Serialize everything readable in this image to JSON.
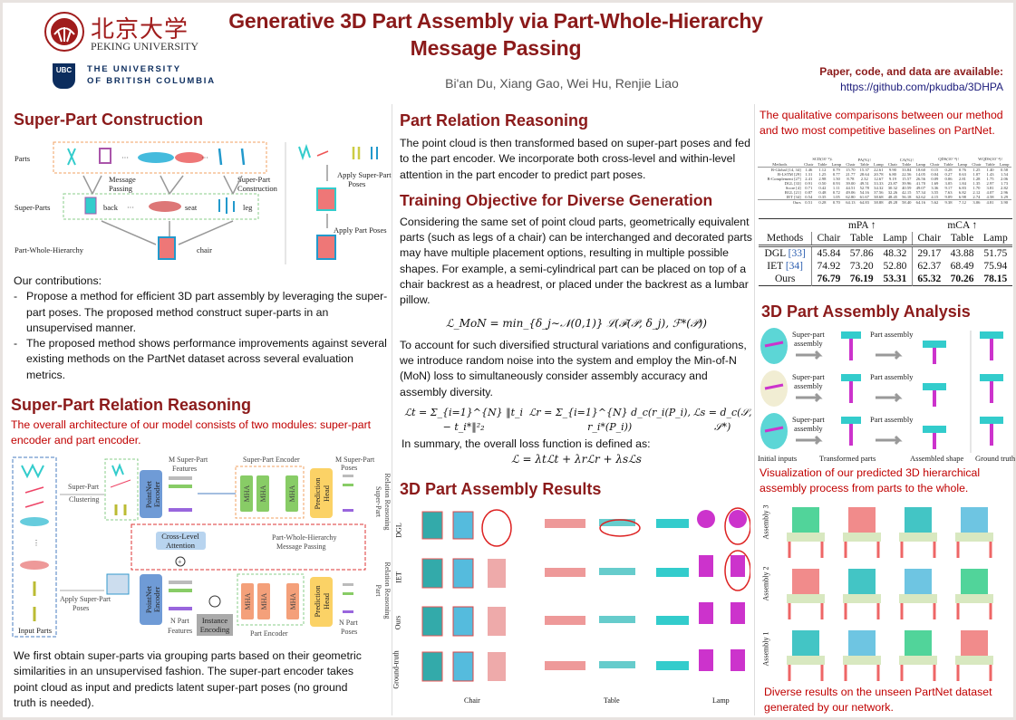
{
  "header": {
    "title_line1": "Generative 3D Part Assembly via Part-Whole-Hierarchy",
    "title_line2": "Message Passing",
    "authors": "Bi'an Du,  Xiang Gao, Wei Hu, Renjie Liao",
    "availability": "Paper, code, and data are available:",
    "link": "https://github.com/pkudba/3DHPA",
    "logos": {
      "pku_chinese": "北京大学",
      "pku_english": "PEKING UNIVERSITY",
      "ubc_mark": "UBC",
      "ubc_line1": "THE UNIVERSITY",
      "ubc_line2": "OF BRITISH COLUMBIA"
    }
  },
  "colors": {
    "heading": "#8b1a1a",
    "caption": "#c00000",
    "link": "#1a1a7a"
  },
  "left": {
    "construction": {
      "title": "Super-Part Construction",
      "figure": {
        "parts": "Parts",
        "super_parts": "Super-Parts",
        "hierarchy": "Part-Whole-Hierarchy",
        "message_passing": [
          "Message",
          "Passing"
        ],
        "construction": [
          "Super-Part",
          "Construction"
        ],
        "back": "back",
        "seat": "seat",
        "leg": "leg",
        "chair": "chair",
        "dots": "···",
        "apply_super": [
          "Apply Super-Part",
          "Poses"
        ],
        "apply_part": "Apply Part Poses"
      },
      "contributions_title": "Our contributions:",
      "contributions": [
        "Propose a method for efficient 3D part assembly by leveraging the super-part poses. The proposed method construct super-parts in an unsupervised manner.",
        "The proposed method shows performance improvements against several existing methods on the PartNet dataset across several evaluation metrics."
      ]
    },
    "relation": {
      "title": "Super-Part Relation Reasoning",
      "caption": "The overall architecture of our model consists of two modules: super-part encoder and part encoder.",
      "figure": {
        "input_parts": "Input Parts",
        "clustering": [
          "Super-Part",
          "Clustering"
        ],
        "apply_poses": [
          "Apply Super-Part",
          "Poses"
        ],
        "pointnet": [
          "PointNet",
          "Encoder"
        ],
        "m_features": [
          "M Super-Part",
          "Features"
        ],
        "n_features": [
          "N Part",
          "Features"
        ],
        "super_encoder": "Super-Part Encoder",
        "part_encoder": "Part Encoder",
        "mha": "MHA",
        "prediction": [
          "Prediction",
          "Head"
        ],
        "m_poses": [
          "M Super-Part",
          "Poses"
        ],
        "n_poses": [
          "N Part",
          "Poses"
        ],
        "cross_level": [
          "Cross-Level",
          "Attention"
        ],
        "message": [
          "Part-Whole-Hierarchy",
          "Message Passing"
        ],
        "instance": [
          "Instance",
          "Encoding"
        ],
        "super_reasoning": [
          "Super-Part",
          "Relation Reasoning"
        ],
        "part_reasoning": [
          "Part",
          "Relation Reasoning"
        ]
      },
      "body": "We first obtain super-parts via grouping parts based on their geometric similarities in an unsupervised fashion. The super-part encoder takes point cloud as input and predicts latent super-part poses (no ground truth is needed)."
    }
  },
  "middle": {
    "part_relation": {
      "title": "Part Relation Reasoning",
      "body": "The point cloud is then transformed based on super-part poses and fed to the part encoder. We incorporate both cross-level and within-level attention in the part encoder to predict part poses."
    },
    "training": {
      "title": "Training Objective for Diverse Generation",
      "body1": "Considering the same set of point cloud parts, geometrically equivalent parts (such as legs of a chair) can be interchanged and decorated parts may have multiple placement options, resulting in multiple possible shapes. For example, a semi-cylindrical part can be placed on top of a chair backrest as a headrest, or placed under the backrest as a lumbar pillow.",
      "eq_mon": "ℒ_MoN = min_{δ_j∼𝒩(0,1)} ℒ(ℱ(𝒫, δ_j), ℱ*(𝒫))",
      "body2": "To account for such diversified structural variations and configurations, we introduce random noise into the system and employ the Min-of-N (MoN) loss to simultaneously consider assembly accuracy and assembly diversity.",
      "eq_t": "ℒt = Σ_{i=1}^{N} ‖t_i − t_i*‖²₂",
      "eq_r": "ℒr = Σ_{i=1}^{N} d_c(r_i(P_i), r_i*(P_i))",
      "eq_s": "ℒs = d_c(𝒮, 𝒮*)",
      "body3": "In summary, the overall loss function is defined as:",
      "eq_total": "ℒ = λtℒt + λrℒr + λsℒs"
    },
    "results": {
      "title": "3D Part Assembly Results",
      "rows": [
        "DGL",
        "IET",
        "Ours",
        "Ground-truth"
      ],
      "columns": [
        "Chair",
        "Table",
        "Lamp"
      ]
    }
  },
  "right": {
    "caption_top": "The qualitative comparisons between our method and two most competitive baselines on PartNet.",
    "full_table": {
      "groups": [
        "SCD(10⁻³)↓",
        "PA(%)↑",
        "CA(%)↑",
        "QDS(10⁻⁴)↑",
        "WQDS(10⁻⁴)↑"
      ],
      "methods_header": "Methods",
      "sub": [
        "Chair",
        "Table",
        "Lamp"
      ],
      "rows": [
        {
          "method": "B-Global [14, 34]",
          "values": [
            "1.46",
            "1.12",
            "0.79",
            "15.70",
            "15.37",
            "22.61",
            "9.90",
            "33.84",
            "18.60",
            "0.15",
            "0.28",
            "0.76",
            "1.25",
            "1.40",
            "0.58"
          ]
        },
        {
          "method": "B-LSTM [29]",
          "values": [
            "1.31",
            "1.25",
            "0.77",
            "21.77",
            "28.64",
            "20.78",
            "6.80",
            "22.56",
            "14.05",
            "0.04",
            "0.27",
            "0.63",
            "1.07",
            "1.43",
            "1.54"
          ]
        },
        {
          "method": "B-Complement [27]",
          "values": [
            "2.41",
            "2.98",
            "1.50",
            "8.78",
            "2.32",
            "12.67",
            "9.19",
            "15.57",
            "26.56",
            "0.09",
            "0.06",
            "2.81",
            "1.28",
            "1.75",
            "2.06"
          ]
        },
        {
          "method": "DGL [33]",
          "values": [
            "0.91",
            "0.50",
            "0.93",
            "39.00",
            "49.51",
            "33.33",
            "23.87",
            "39.96",
            "41.70",
            "1.69",
            "3.05",
            "1.84",
            "1.35",
            "2.97",
            "1.73"
          ]
        },
        {
          "method": "Score [4]",
          "values": [
            "0.71",
            "0.42",
            "1.11",
            "44.51",
            "52.78",
            "34.32",
            "30.32",
            "40.59",
            "49.07",
            "3.36",
            "9.17",
            "6.83",
            "1.70",
            "3.81",
            "2.82"
          ]
        },
        {
          "method": "RGL [21]",
          "values": [
            "0.87",
            "0.48",
            "0.72",
            "49.06",
            "54.16",
            "37.56",
            "32.26",
            "42.15",
            "57.34",
            "3.55",
            "7.63",
            "6.82",
            "2.12",
            "4.07",
            "2.96"
          ]
        },
        {
          "method": "IET [34]",
          "values": [
            "0.54",
            "0.35",
            "1.05",
            "62.80",
            "61.67",
            "38.68",
            "48.45",
            "56.18",
            "62.62",
            "4.15",
            "9.09",
            "6.98",
            "2.74",
            "4.58",
            "3.29"
          ]
        },
        {
          "method": "Ours",
          "values": [
            "0.51",
            "0.28",
            "0.70",
            "64.13",
            "64.83",
            "38.88",
            "49.28",
            "58.40",
            "64.16",
            "5.62",
            "9.38",
            "7.12",
            "3.06",
            "4.81",
            "3.90"
          ]
        }
      ]
    },
    "table": {
      "groups": [
        "mPA ↑",
        "mCA ↑"
      ],
      "methods_header": "Methods",
      "sub": [
        "Chair",
        "Table",
        "Lamp",
        "Chair",
        "Table",
        "Lamp"
      ],
      "rows": [
        {
          "method": "DGL",
          "ref": "[33]",
          "values": [
            "45.84",
            "57.86",
            "48.32",
            "29.17",
            "43.88",
            "51.75"
          ]
        },
        {
          "method": "IET",
          "ref": "[34]",
          "values": [
            "74.92",
            "73.20",
            "52.80",
            "62.37",
            "68.49",
            "75.94"
          ]
        },
        {
          "method": "Ours",
          "ref": "",
          "values": [
            "76.79",
            "76.19",
            "53.31",
            "65.32",
            "70.26",
            "78.15"
          ]
        }
      ]
    },
    "analysis": {
      "title": "3D Part Assembly Analysis",
      "super_assembly": [
        "Super-part",
        "assembly"
      ],
      "part_assembly": "Part assembly",
      "labels": [
        "Initial inputs",
        "Transformed parts",
        "Assembled shape",
        "Ground truth"
      ],
      "caption": "Visualization of our predicted 3D hierarchical assembly process from parts to the whole."
    },
    "diverse": {
      "rows": [
        "Assembly 3",
        "Assembly 2",
        "Assembly 1"
      ],
      "caption": "Diverse results on the unseen PartNet dataset generated by our network."
    }
  }
}
